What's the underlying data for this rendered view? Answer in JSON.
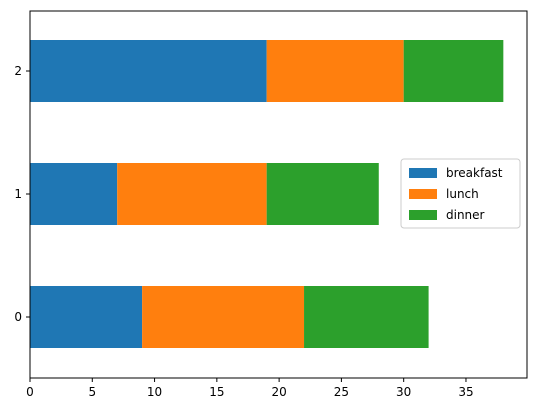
{
  "chart_data": {
    "type": "bar",
    "orientation": "horizontal",
    "stacked": true,
    "categories": [
      "0",
      "1",
      "2"
    ],
    "series": [
      {
        "name": "breakfast",
        "values": [
          9,
          7,
          19
        ],
        "color": "#1f77b4"
      },
      {
        "name": "lunch",
        "values": [
          13,
          12,
          11
        ],
        "color": "#ff7f0e"
      },
      {
        "name": "dinner",
        "values": [
          10,
          9,
          8
        ],
        "color": "#2ca02c"
      }
    ],
    "x_ticks": [
      0,
      5,
      10,
      15,
      20,
      25,
      30,
      35
    ],
    "xlim": [
      0,
      39.9
    ],
    "title": "",
    "xlabel": "",
    "ylabel": "",
    "grid": false,
    "legend_position": "center-right"
  }
}
